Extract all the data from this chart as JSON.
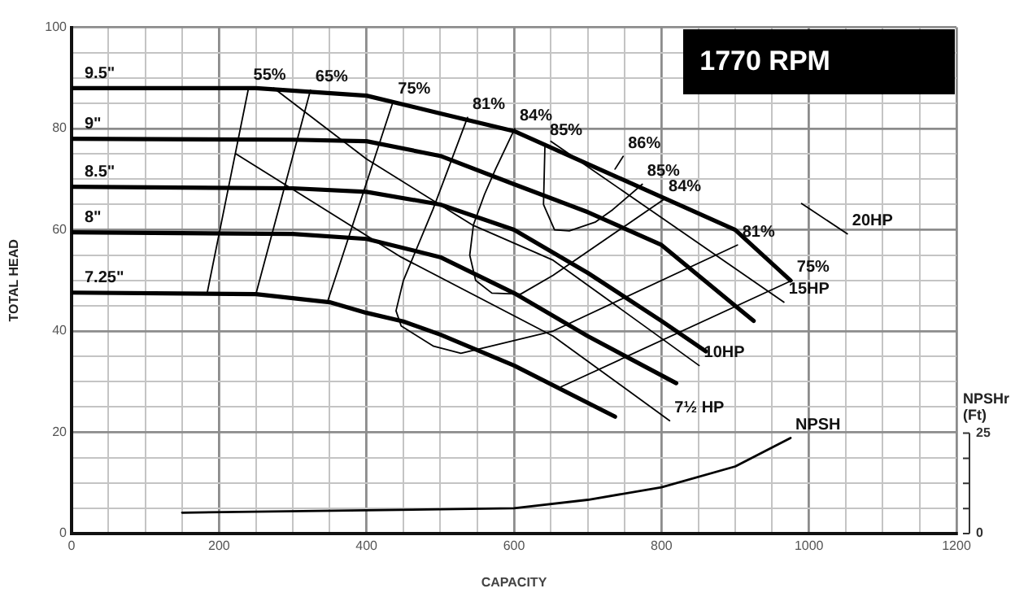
{
  "chart_data": {
    "type": "line",
    "title": "1770 RPM",
    "xlabel": "CAPACITY",
    "ylabel": "TOTAL HEAD",
    "y2label": "NPSHr (Ft)",
    "grid": true,
    "marker": "none",
    "line_style": "solid",
    "xlim": [
      0,
      1200
    ],
    "xticks": [
      0,
      {
        "value": 50,
        "label": null
      },
      {
        "value": 100,
        "label": null
      },
      {
        "value": 150,
        "label": null
      },
      200,
      {
        "value": 250,
        "label": null
      },
      {
        "value": 300,
        "label": null
      },
      {
        "value": 350,
        "label": null
      },
      400,
      {
        "value": 450,
        "label": null
      },
      {
        "value": 500,
        "label": null
      },
      {
        "value": 550,
        "label": null
      },
      600,
      {
        "value": 650,
        "label": null
      },
      {
        "value": 700,
        "label": null
      },
      {
        "value": 750,
        "label": null
      },
      800,
      {
        "value": 850,
        "label": null
      },
      {
        "value": 900,
        "label": null
      },
      {
        "value": 950,
        "label": null
      },
      1000,
      {
        "value": 1050,
        "label": null
      },
      {
        "value": 1100,
        "label": null
      },
      {
        "value": 1150,
        "label": null
      },
      1200
    ],
    "ylim": [
      0,
      100
    ],
    "yticks": [
      0,
      {
        "value": 5,
        "label": null
      },
      {
        "value": 10,
        "label": null
      },
      {
        "value": 15,
        "label": null
      },
      20,
      {
        "value": 25,
        "label": null
      },
      {
        "value": 30,
        "label": null
      },
      {
        "value": 35,
        "label": null
      },
      40,
      {
        "value": 45,
        "label": null
      },
      {
        "value": 50,
        "label": null
      },
      {
        "value": 55,
        "label": null
      },
      60,
      {
        "value": 65,
        "label": null
      },
      {
        "value": 70,
        "label": null
      },
      {
        "value": 75,
        "label": null
      },
      80,
      {
        "value": 85,
        "label": null
      },
      {
        "value": 90,
        "label": null
      },
      {
        "value": 95,
        "label": null
      },
      100
    ],
    "y2lim": [
      0,
      126
    ],
    "y2ticks": [
      0,
      {
        "value": 6.25,
        "label": null
      },
      {
        "value": 12.5,
        "label": null
      },
      {
        "value": 18.75,
        "label": null
      },
      25
    ],
    "series": [
      {
        "name": "9.5\"",
        "color": "#000000",
        "x": [
          0,
          250,
          400,
          500,
          600,
          700,
          800,
          900,
          975
        ],
        "values": [
          88,
          88,
          86.5,
          83,
          79.5,
          73,
          66.5,
          60,
          50
        ]
      },
      {
        "name": "9\"",
        "color": "#000000",
        "x": [
          0,
          300,
          400,
          500,
          600,
          700,
          800,
          900,
          925
        ],
        "values": [
          78,
          77.8,
          77.5,
          74.6,
          69,
          63.5,
          57,
          45,
          42
        ]
      },
      {
        "name": "8.5\"",
        "color": "#000000",
        "x": [
          0,
          300,
          400,
          500,
          600,
          700,
          800,
          860
        ],
        "values": [
          68.5,
          68.2,
          67.5,
          65,
          60,
          51.5,
          42,
          36
        ]
      },
      {
        "name": "8\"",
        "color": "#000000",
        "x": [
          0,
          300,
          400,
          500,
          600,
          700,
          820
        ],
        "values": [
          59.5,
          59.2,
          58.2,
          54.6,
          47.5,
          39,
          29.7
        ]
      },
      {
        "name": "7.25\"",
        "color": "#000000",
        "x": [
          0,
          250,
          350,
          400,
          450,
          500,
          600,
          737
        ],
        "values": [
          47.6,
          47.3,
          45.7,
          43.6,
          41.9,
          39.3,
          33.2,
          23.1
        ]
      },
      {
        "color": "#000000",
        "x": [
          240,
          184
        ],
        "values": [
          88,
          47.6
        ]
      },
      {
        "color": "#000000",
        "x": [
          324,
          250
        ],
        "values": [
          87.6,
          47.3
        ]
      },
      {
        "color": "#000000",
        "x": [
          436,
          348
        ],
        "values": [
          85.3,
          46.2
        ]
      },
      {
        "color": "#000000",
        "x": [
          664,
          977
        ],
        "values": [
          29,
          50
        ]
      },
      {
        "color": "#000000",
        "x": [
          537,
          490,
          450,
          440,
          447,
          491,
          528,
          565,
          653,
          903
        ],
        "values": [
          82.2,
          64,
          50,
          44,
          41,
          37,
          35.6,
          36.9,
          40,
          57
        ]
      },
      {
        "color": "#000000",
        "x": [
          601,
          575,
          560,
          545,
          540,
          548,
          570,
          609,
          653,
          803
        ],
        "values": [
          80,
          72,
          67,
          61,
          55,
          50,
          47.5,
          47.3,
          51,
          66
        ]
      },
      {
        "color": "#000000",
        "x": [
          642,
          640,
          655,
          675,
          710,
          734,
          774
        ],
        "values": [
          77,
          65,
          60,
          59.8,
          61.5,
          64,
          69
        ]
      },
      {
        "color": "#000000",
        "x": [
          737,
          748
        ],
        "values": [
          72,
          74.5
        ]
      },
      {
        "color": "#000000",
        "x": [
          223,
          447,
          653,
          811
        ],
        "values": [
          75,
          54.6,
          39,
          22.3
        ]
      },
      {
        "color": "#000000",
        "x": [
          274,
          400,
          543,
          653,
          851
        ],
        "values": [
          88,
          74,
          61,
          54,
          33.2
        ]
      },
      {
        "color": "#000000",
        "x": [
          650,
          966
        ],
        "values": [
          77.5,
          45.7
        ]
      },
      {
        "color": "#000000",
        "x": [
          990,
          1052
        ],
        "values": [
          65.2,
          59.2
        ]
      },
      {
        "axis": "y2",
        "color": "#000000",
        "x": [
          150,
          400,
          600,
          700,
          800,
          900,
          975
        ],
        "values": [
          5.2,
          5.8,
          6.3,
          8.4,
          11.5,
          16.7,
          23.8
        ]
      }
    ],
    "annotations": [
      {
        "text": "55%",
        "x": 240,
        "y": 88
      },
      {
        "text": "65%",
        "x": 324,
        "y": 87.6
      },
      {
        "text": "75%",
        "x": 436,
        "y": 85.3
      },
      {
        "text": "81%",
        "x": 537,
        "y": 82.2
      },
      {
        "text": "84%",
        "x": 601,
        "y": 80
      },
      {
        "text": "85%",
        "x": 642,
        "y": 77
      },
      {
        "text": "86%",
        "x": 748,
        "y": 74.5
      },
      {
        "text": "85%",
        "x": 774,
        "y": 69
      },
      {
        "text": "84%",
        "x": 803,
        "y": 66
      },
      {
        "text": "81%",
        "x": 903,
        "y": 57
      },
      {
        "text": "75%",
        "x": 977,
        "y": 50
      },
      {
        "text": "20HP",
        "x": 1052,
        "y": 59.2
      },
      {
        "text": "15HP",
        "x": 966,
        "y": 45.7
      },
      {
        "text": "10HP",
        "x": 851,
        "y": 33.2
      },
      {
        "text": "7½ HP",
        "x": 811,
        "y": 22.3
      },
      {
        "text": "NPSH",
        "x": 975,
        "y": 18.9
      }
    ]
  }
}
